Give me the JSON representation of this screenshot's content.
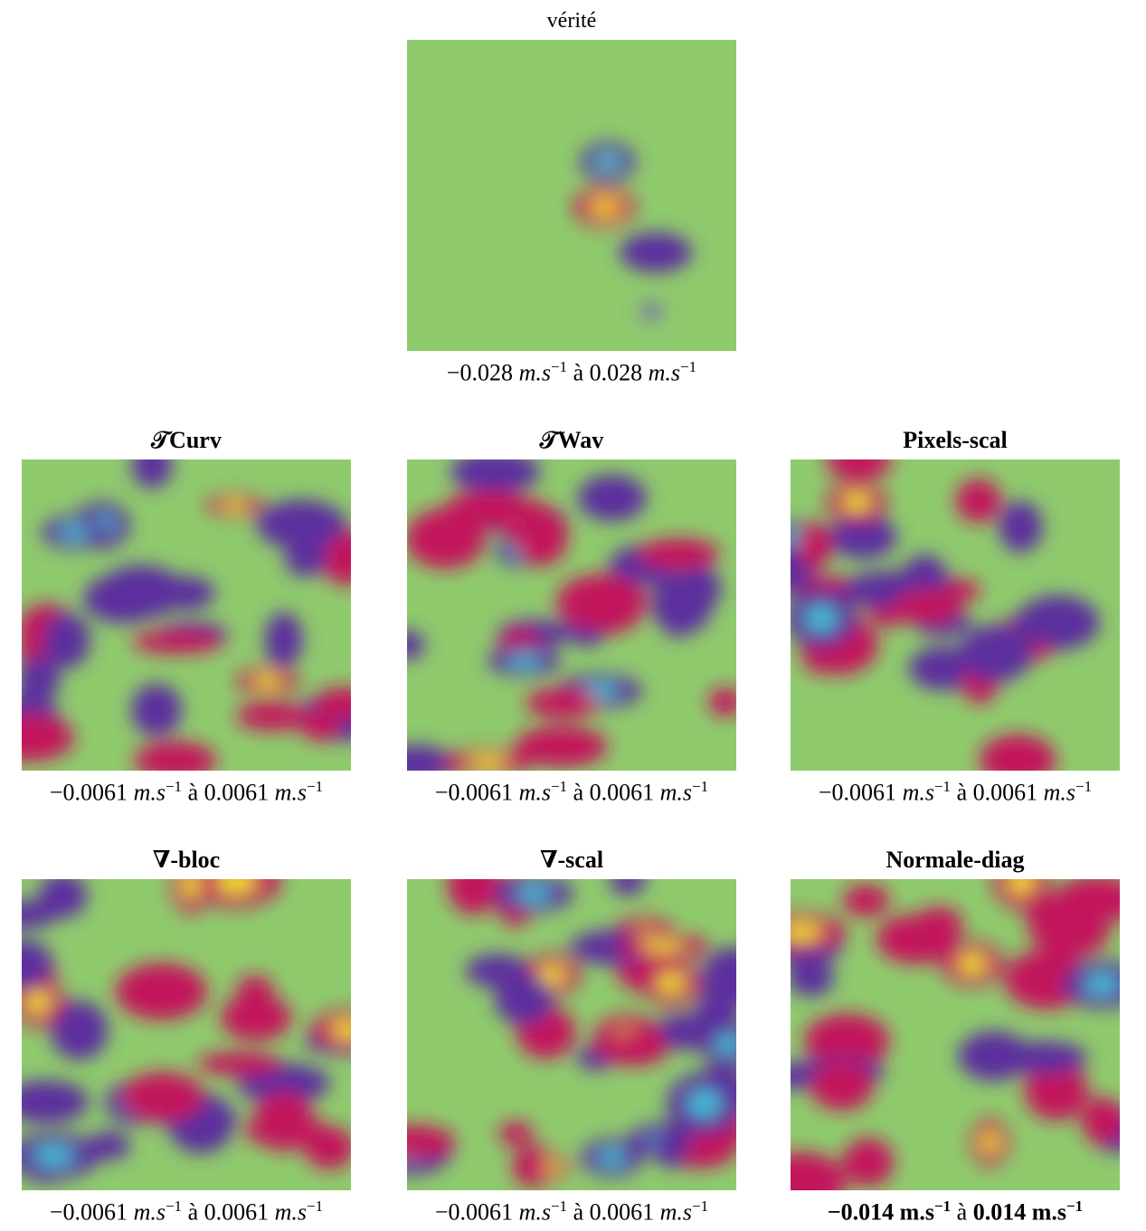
{
  "figure": {
    "panels": [
      {
        "title": "vérité",
        "caption": {
          "min": "−0.028",
          "unit": "m.s",
          "exponent": "−1",
          "connector": "à",
          "max": "0.028"
        }
      },
      {
        "title": "𝒯Curv",
        "caption": {
          "min": "−0.0061",
          "unit": "m.s",
          "exponent": "−1",
          "connector": "à",
          "max": "0.0061"
        }
      },
      {
        "title": "𝒯Wav",
        "caption": {
          "min": "−0.0061",
          "unit": "m.s",
          "exponent": "−1",
          "connector": "à",
          "max": "0.0061"
        }
      },
      {
        "title": "Pixels-scal",
        "caption": {
          "min": "−0.0061",
          "unit": "m.s",
          "exponent": "−1",
          "connector": "à",
          "max": "0.0061"
        }
      },
      {
        "title": "∇-bloc",
        "caption": {
          "min": "−0.0061",
          "unit": "m.s",
          "exponent": "−1",
          "connector": "à",
          "max": "0.0061"
        }
      },
      {
        "title": "∇-scal",
        "caption": {
          "min": "−0.0061",
          "unit": "m.s",
          "exponent": "−1",
          "connector": "à",
          "max": "0.0061"
        }
      },
      {
        "title": "Normale-diag",
        "caption": {
          "min": "−0.014",
          "unit": "m.s",
          "exponent": "−1",
          "connector": "à",
          "max": "0.014"
        }
      }
    ]
  }
}
